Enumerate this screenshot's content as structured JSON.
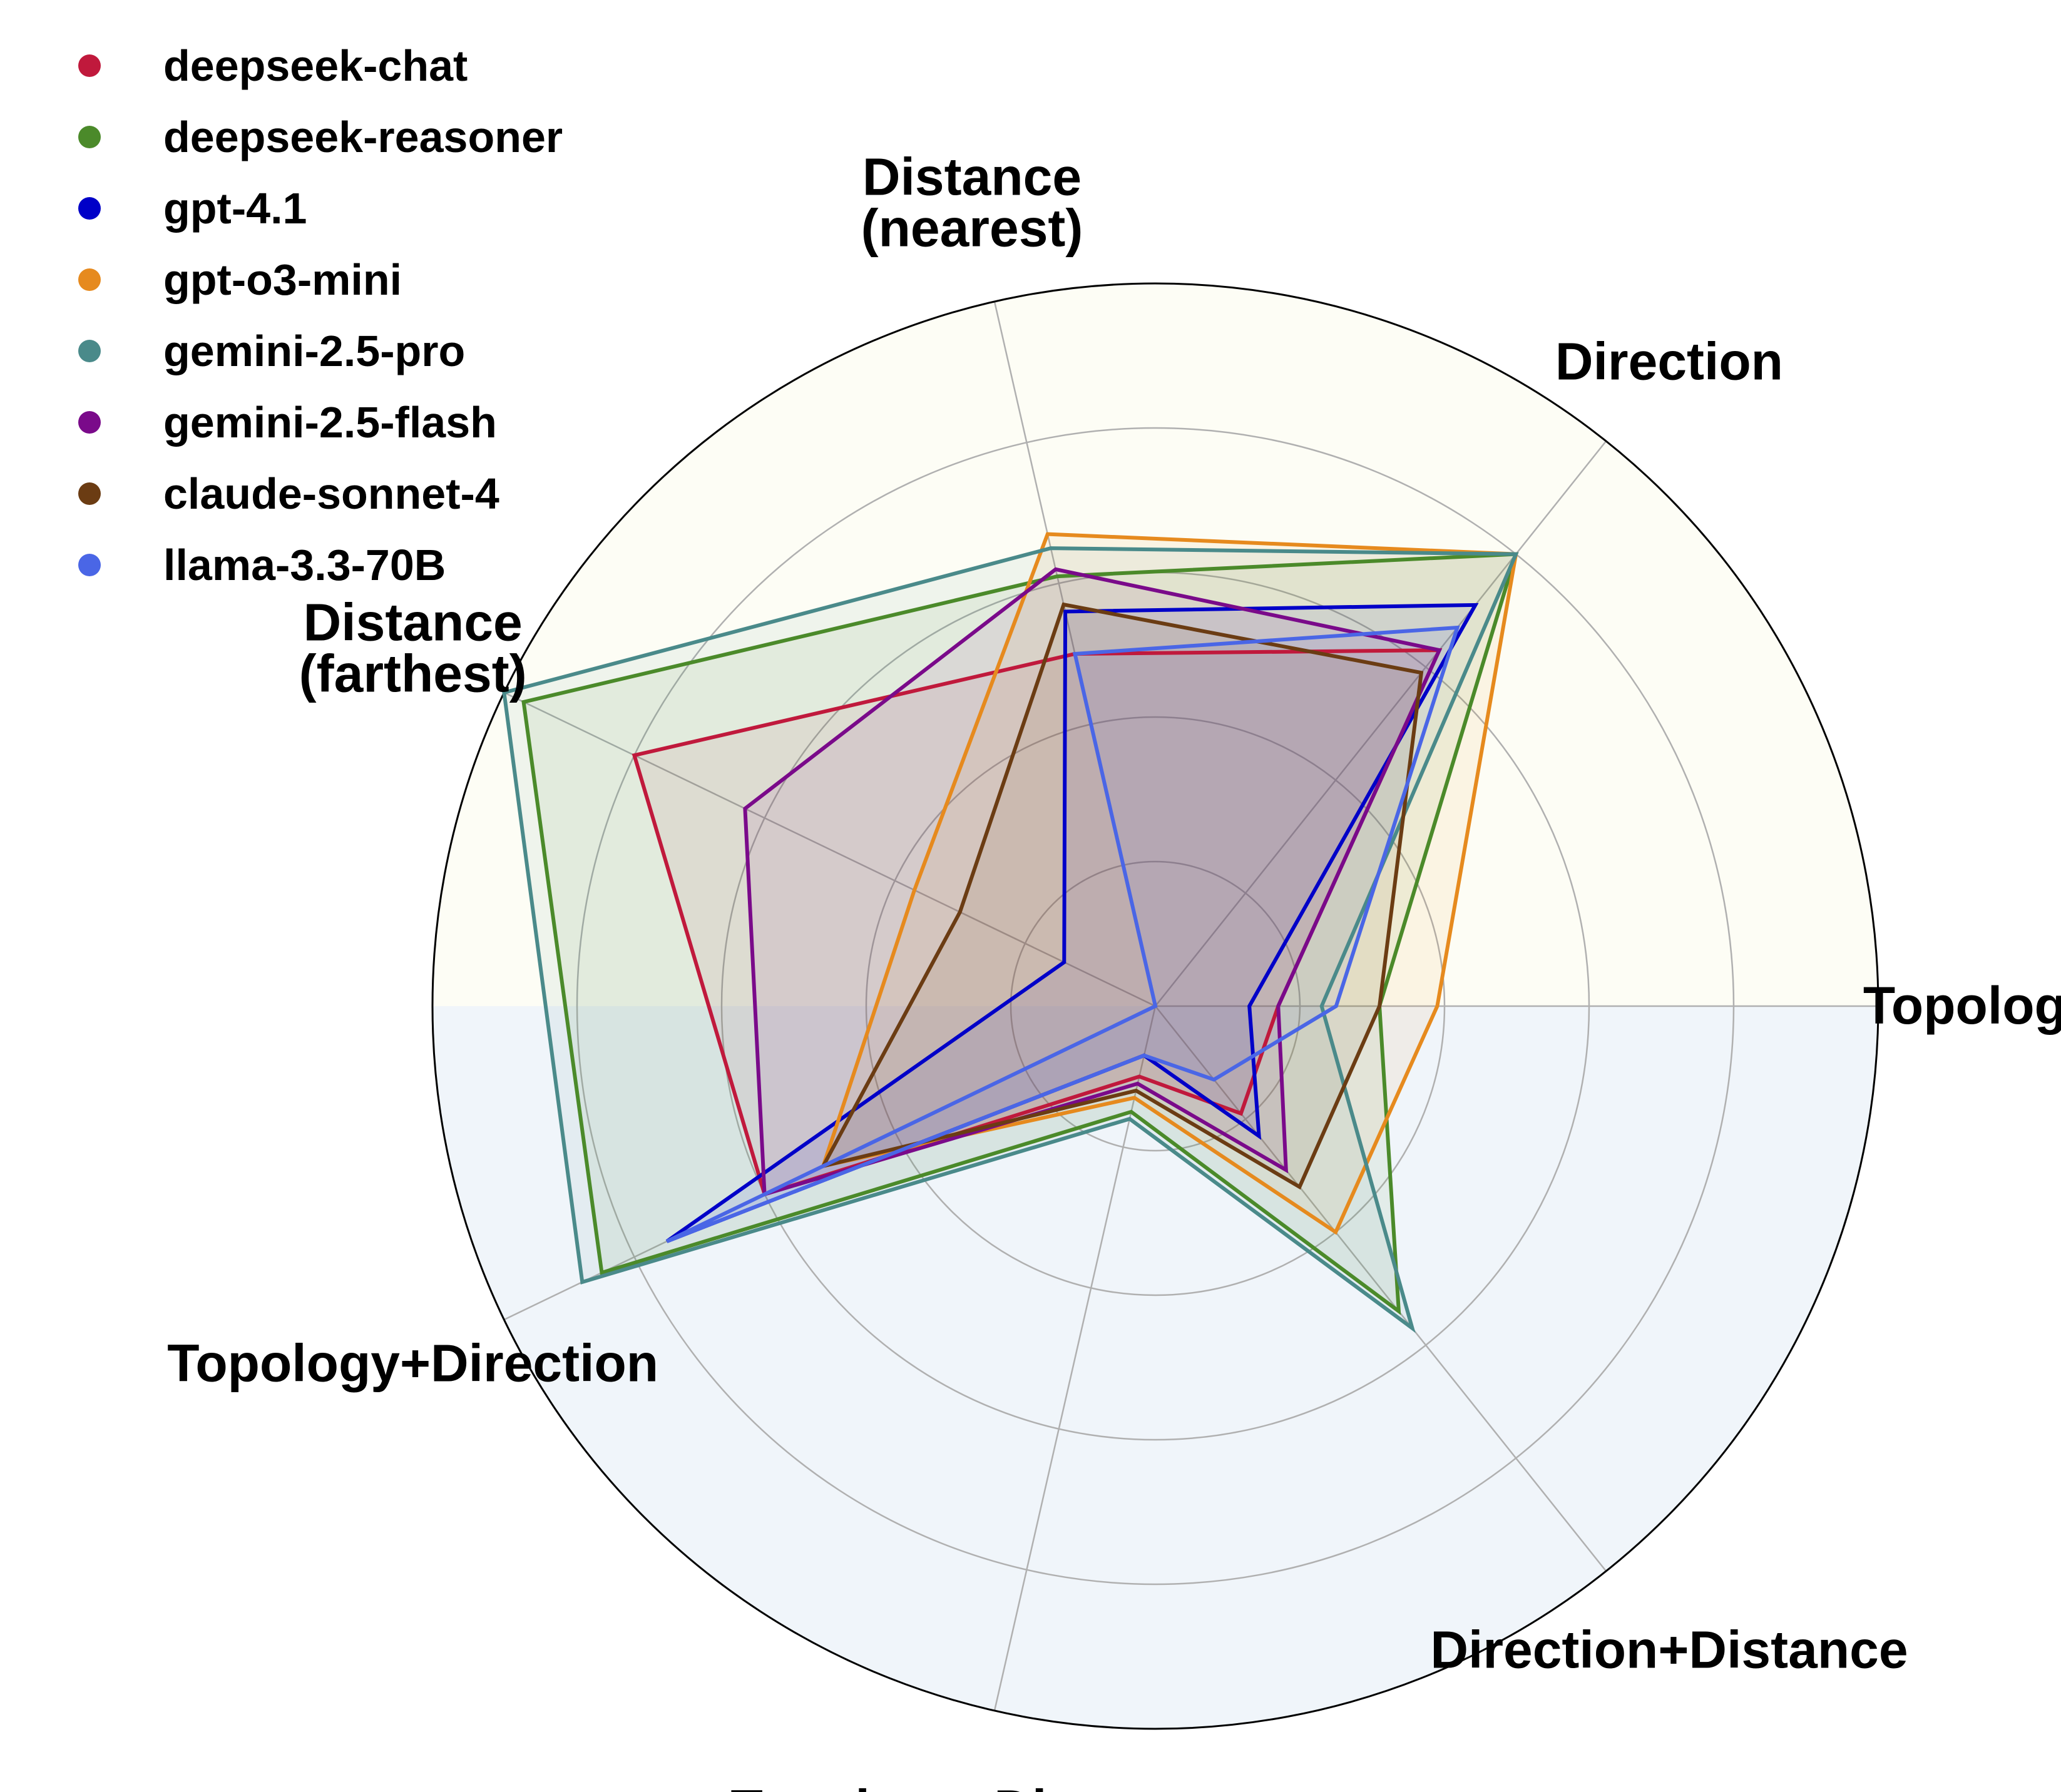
{
  "chart_data": {
    "type": "radar",
    "title": "",
    "axes": [
      "Topology",
      "Direction",
      "Distance\n(nearest)",
      "Distance\n(farthest)",
      "Topology+Direction",
      "Topology+Distance",
      "Direction+Distance"
    ],
    "rlim": [
      0,
      1
    ],
    "grid": true,
    "legend_position": "top-left",
    "series": [
      {
        "name": "deepseek-chat",
        "color": "#c0193c",
        "values": [
          0.17,
          0.63,
          0.5,
          0.8,
          0.6,
          0.1,
          0.19
        ]
      },
      {
        "name": "deepseek-reasoner",
        "color": "#4b8a2a",
        "values": [
          0.31,
          0.8,
          0.61,
          0.97,
          0.85,
          0.15,
          0.54
        ]
      },
      {
        "name": "gpt-4.1",
        "color": "#0000c8",
        "values": [
          0.13,
          0.71,
          0.56,
          0.14,
          0.75,
          0.07,
          0.23
        ]
      },
      {
        "name": "gpt-o3-mini",
        "color": "#e68a1e",
        "values": [
          0.39,
          0.8,
          0.67,
          0.37,
          0.51,
          0.13,
          0.4
        ]
      },
      {
        "name": "gemini-2.5-pro",
        "color": "#4a8a8a",
        "values": [
          0.23,
          0.8,
          0.65,
          1.0,
          0.88,
          0.16,
          0.57
        ]
      },
      {
        "name": "gemini-2.5-flash",
        "color": "#7a0a8a",
        "values": [
          0.17,
          0.63,
          0.62,
          0.63,
          0.6,
          0.11,
          0.29
        ]
      },
      {
        "name": "claude-sonnet-4",
        "color": "#6b3c13",
        "values": [
          0.31,
          0.59,
          0.57,
          0.3,
          0.51,
          0.12,
          0.32
        ]
      },
      {
        "name": "llama-3.3-70B",
        "color": "#4a66e6",
        "values": [
          0.25,
          0.67,
          0.5,
          0.0,
          0.75,
          0.07,
          0.13
        ]
      }
    ]
  }
}
